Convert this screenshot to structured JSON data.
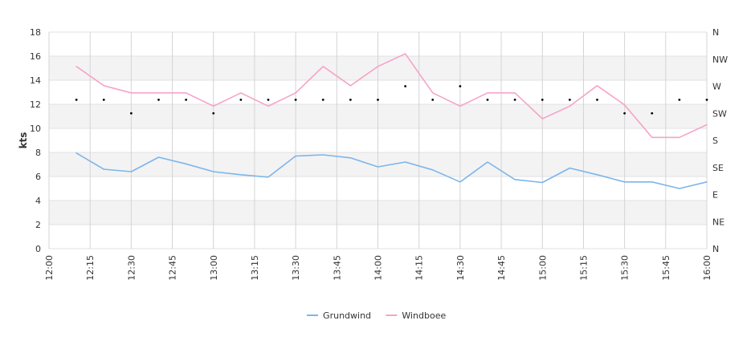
{
  "chart_data": {
    "type": "line",
    "title": "",
    "xlabel": "",
    "ylabel": "kts",
    "ylim": [
      0,
      18
    ],
    "yticks": [
      "0",
      "2",
      "4",
      "6",
      "8",
      "10",
      "12",
      "14",
      "16",
      "18"
    ],
    "xlim": [
      "12:00",
      "16:00"
    ],
    "xticks": [
      "12:00",
      "12:15",
      "12:30",
      "12:45",
      "13:00",
      "13:15",
      "13:30",
      "13:45",
      "14:00",
      "14:15",
      "14:30",
      "14:45",
      "15:00",
      "15:15",
      "15:30",
      "15:45",
      "16:00"
    ],
    "y2_ticks": [
      "N",
      "NE",
      "E",
      "SE",
      "S",
      "SW",
      "W",
      "NW",
      "N"
    ],
    "grid": true,
    "legend_position": "bottom",
    "x": [
      "12:10",
      "12:20",
      "12:30",
      "12:40",
      "12:50",
      "13:00",
      "13:10",
      "13:20",
      "13:30",
      "13:40",
      "13:50",
      "14:00",
      "14:10",
      "14:20",
      "14:30",
      "14:40",
      "14:50",
      "15:00",
      "15:10",
      "15:20",
      "15:30",
      "15:40",
      "15:50",
      "16:00"
    ],
    "series": [
      {
        "name": "Grundwind",
        "color": "#7cb5ec",
        "values": [
          7.95,
          6.6,
          6.4,
          7.6,
          7.05,
          6.4,
          6.15,
          5.95,
          7.7,
          7.8,
          7.55,
          6.8,
          7.2,
          6.55,
          5.55,
          7.2,
          5.75,
          5.5,
          6.7,
          6.15,
          5.55,
          5.55,
          5.0,
          5.55
        ]
      },
      {
        "name": "Windboee",
        "color": "#f7a3c9",
        "values": [
          15.15,
          13.55,
          12.95,
          12.95,
          12.95,
          11.85,
          12.95,
          11.85,
          12.95,
          15.15,
          13.55,
          15.15,
          16.2,
          12.95,
          11.85,
          12.95,
          12.95,
          10.8,
          11.85,
          13.55,
          11.95,
          9.25,
          9.25,
          10.3
        ]
      }
    ],
    "direction_dots": [
      {
        "x": "12:10",
        "dir": "WSW"
      },
      {
        "x": "12:20",
        "dir": "WSW"
      },
      {
        "x": "12:30",
        "dir": "SW"
      },
      {
        "x": "12:40",
        "dir": "WSW"
      },
      {
        "x": "12:50",
        "dir": "WSW"
      },
      {
        "x": "13:00",
        "dir": "SW"
      },
      {
        "x": "13:10",
        "dir": "WSW"
      },
      {
        "x": "13:20",
        "dir": "WSW"
      },
      {
        "x": "13:30",
        "dir": "WSW"
      },
      {
        "x": "13:40",
        "dir": "WSW"
      },
      {
        "x": "13:50",
        "dir": "WSW"
      },
      {
        "x": "14:00",
        "dir": "WSW"
      },
      {
        "x": "14:10",
        "dir": "W"
      },
      {
        "x": "14:20",
        "dir": "WSW"
      },
      {
        "x": "14:30",
        "dir": "W"
      },
      {
        "x": "14:40",
        "dir": "WSW"
      },
      {
        "x": "14:50",
        "dir": "WSW"
      },
      {
        "x": "15:00",
        "dir": "WSW"
      },
      {
        "x": "15:10",
        "dir": "WSW"
      },
      {
        "x": "15:20",
        "dir": "WSW"
      },
      {
        "x": "15:30",
        "dir": "SW"
      },
      {
        "x": "15:40",
        "dir": "SW"
      },
      {
        "x": "15:50",
        "dir": "WSW"
      },
      {
        "x": "16:00",
        "dir": "WSW"
      }
    ],
    "direction_scale": {
      "N": 0,
      "NE": 45,
      "E": 90,
      "SE": 135,
      "S": 180,
      "SW": 225,
      "WSW": 247.5,
      "W": 270,
      "NW": 315
    }
  }
}
